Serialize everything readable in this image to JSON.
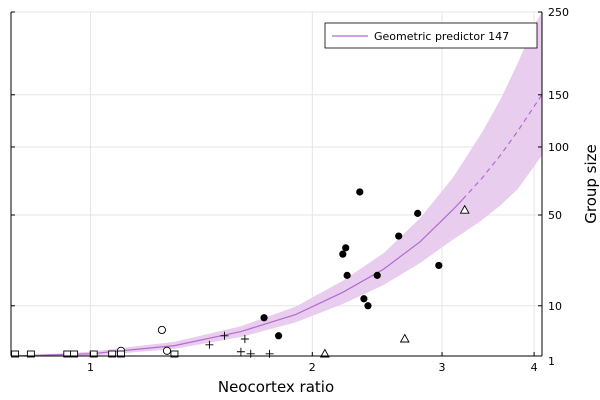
{
  "chart_data": {
    "type": "scatter",
    "title": "",
    "xlabel": "Neocortex ratio",
    "ylabel": "Group size",
    "x_scale": "log",
    "y_scale": "sqrt",
    "xlim": [
      0.78,
      4.1
    ],
    "ylim": [
      1,
      250
    ],
    "x_ticks": [
      1,
      2,
      3,
      4
    ],
    "y_ticks": [
      1,
      10,
      50,
      100,
      150,
      250
    ],
    "grid": true,
    "legend_position": "top-right",
    "colors": {
      "fit_line": "#b36ad0",
      "band": "#e8cdee",
      "points": "#000000",
      "grid": "#e5e5e5"
    },
    "series": [
      {
        "name": "Geometric predictor 147",
        "kind": "fit",
        "x": [
          0.78,
          1.0,
          1.3,
          1.6,
          1.9,
          2.2,
          2.5,
          2.8,
          3.1,
          3.2,
          3.4,
          3.6,
          3.8,
          4.0,
          4.1
        ],
        "y": [
          0.8,
          1.2,
          2.1,
          4.2,
          7.8,
          14.0,
          22.5,
          35.0,
          53.0,
          60.0,
          75.0,
          93.0,
          114.0,
          138.0,
          150.0
        ],
        "lower": [
          0.7,
          1.0,
          1.7,
          3.3,
          6.0,
          10.5,
          16.5,
          25.0,
          36.0,
          39.5,
          47.0,
          56.0,
          67.0,
          84.0,
          93.0
        ],
        "upper": [
          0.9,
          1.4,
          2.6,
          5.2,
          9.8,
          18.0,
          29.5,
          48.0,
          75.0,
          87.0,
          113.0,
          145.0,
          185.0,
          232.0,
          256.0
        ],
        "dashed_from_x": 3.2
      },
      {
        "kind": "points",
        "marker": "circle-filled",
        "x": [
          1.72,
          1.8,
          2.2,
          2.22,
          2.23,
          2.32,
          2.35,
          2.38,
          2.45,
          2.62,
          2.78,
          2.97
        ],
        "y": [
          7,
          3.5,
          29,
          32,
          20,
          65,
          12,
          10,
          20,
          38,
          51,
          24
        ]
      },
      {
        "kind": "points",
        "marker": "circle-open",
        "x": [
          1.1,
          1.25,
          1.27
        ],
        "y": [
          1.5,
          4.5,
          1.5
        ]
      },
      {
        "kind": "points",
        "marker": "plus",
        "x": [
          1.45,
          1.52,
          1.6,
          1.62,
          1.65,
          1.75
        ],
        "y": [
          2.2,
          3.5,
          1.4,
          3.0,
          1.2,
          1.2
        ]
      },
      {
        "kind": "points",
        "marker": "square-open",
        "x": [
          0.79,
          0.83,
          0.93,
          0.95,
          1.01,
          1.07,
          1.1,
          1.3
        ],
        "y": [
          0.2,
          0.2,
          0.2,
          0.2,
          0.2,
          0.2,
          0.2,
          0.2
        ]
      },
      {
        "kind": "points",
        "marker": "triangle-open",
        "x": [
          2.08,
          2.67,
          3.22
        ],
        "y": [
          0.5,
          3.0,
          53
        ]
      }
    ]
  }
}
